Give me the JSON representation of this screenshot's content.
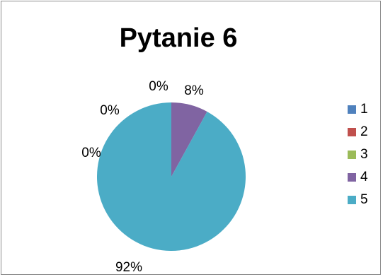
{
  "chart_data": {
    "type": "pie",
    "title": "Pytanie 6",
    "categories": [
      "1",
      "2",
      "3",
      "4",
      "5"
    ],
    "values": [
      0,
      0,
      0,
      8,
      92
    ],
    "data_labels": [
      "0%",
      "0%",
      "0%",
      "8%",
      "92%"
    ],
    "colors": [
      "#4f81bd",
      "#c0504d",
      "#9bbb59",
      "#8064a2",
      "#4bacc6"
    ],
    "legend_position": "right"
  }
}
